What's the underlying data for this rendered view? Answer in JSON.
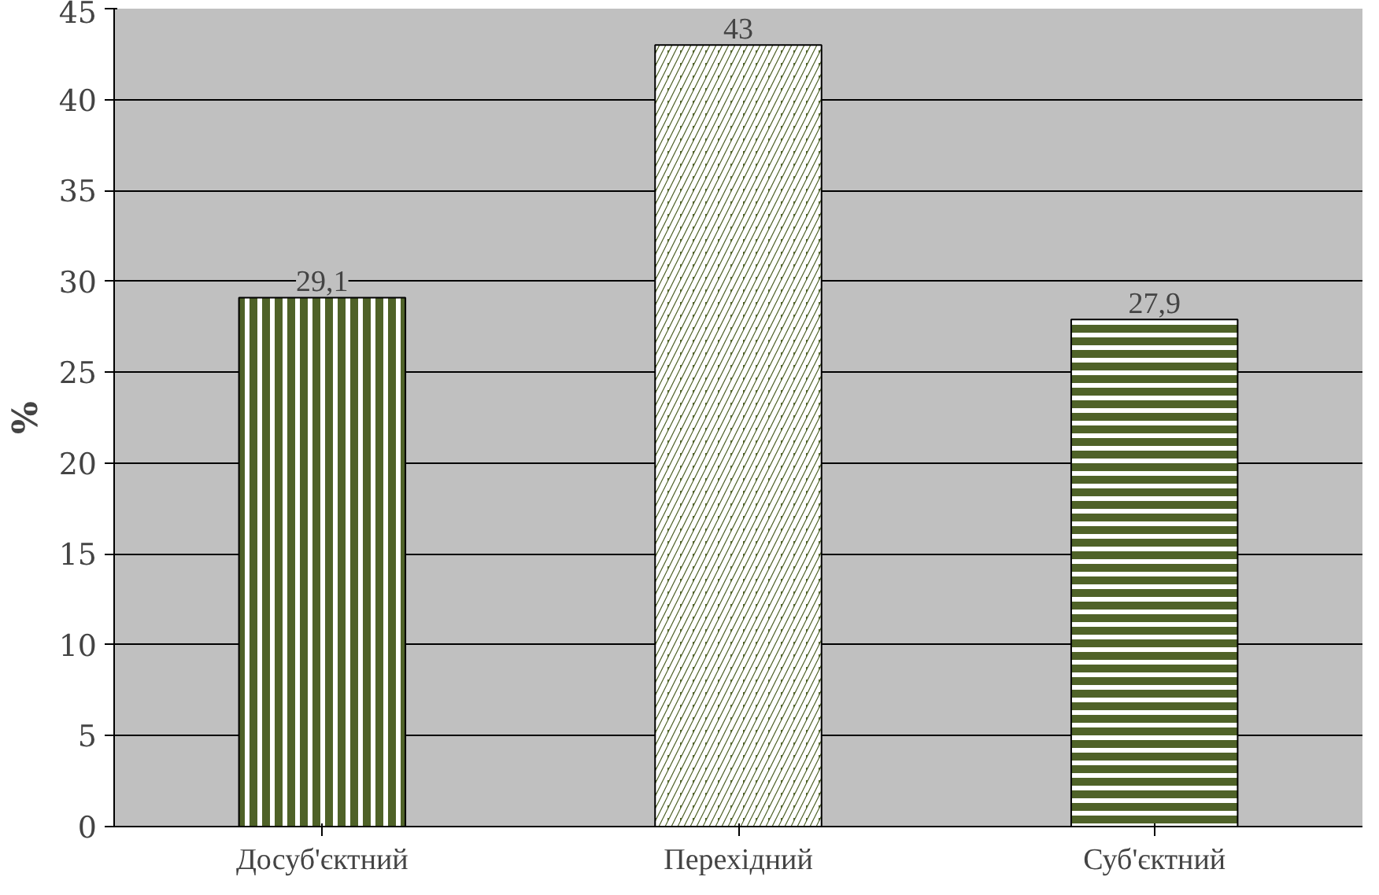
{
  "chart_data": {
    "type": "bar",
    "ylabel": "%",
    "categories": [
      "Досуб'єктний",
      "Перехідний",
      "Суб'єктний"
    ],
    "values": [
      29.1,
      43,
      27.9
    ],
    "value_labels": [
      "29,1",
      "43",
      "27,9"
    ],
    "color": "#4f6228",
    "ylim": [
      0,
      45
    ],
    "yticks": [
      0,
      5,
      10,
      15,
      20,
      25,
      30,
      35,
      40,
      45
    ],
    "grid": "y"
  }
}
